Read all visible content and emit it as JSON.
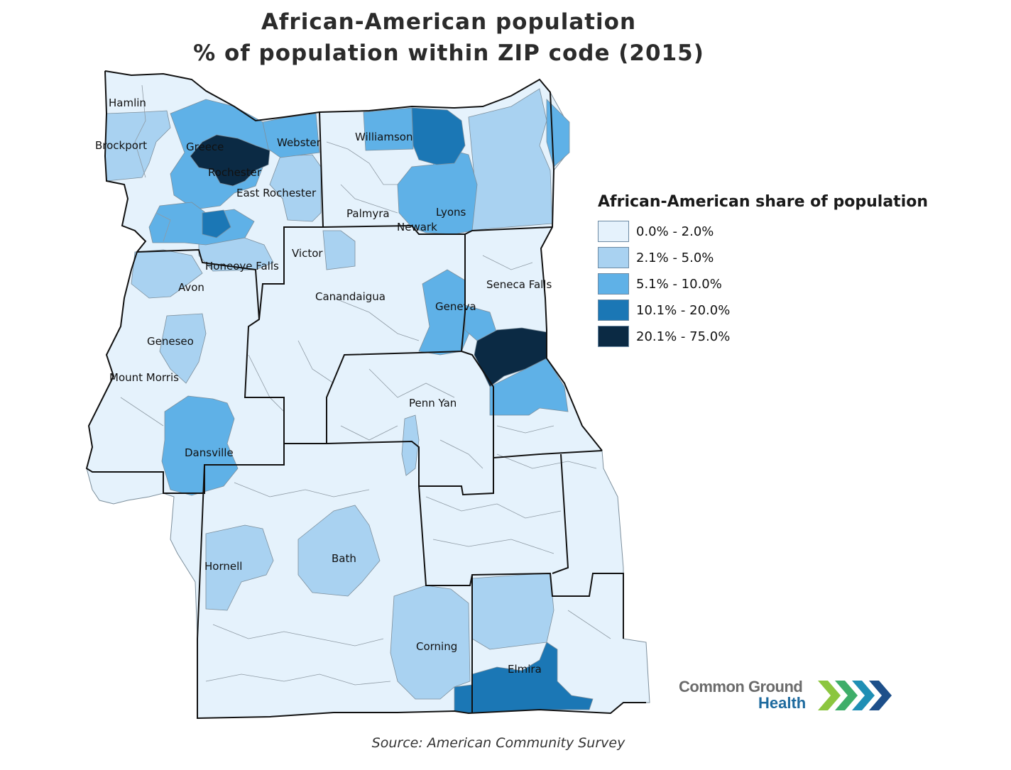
{
  "title": {
    "line1": "African-American population",
    "line2": "% of population within ZIP code (2015)"
  },
  "legend": {
    "title": "African-American share of population",
    "items": [
      {
        "label": "0.0% - 2.0%",
        "color": "#e5f2fc"
      },
      {
        "label": "2.1% - 5.0%",
        "color": "#a9d2f1"
      },
      {
        "label": "5.1% - 10.0%",
        "color": "#5fb1e7"
      },
      {
        "label": "10.1% - 20.0%",
        "color": "#1b77b5"
      },
      {
        "label": "20.1% - 75.0%",
        "color": "#0b2a44"
      }
    ]
  },
  "places": [
    {
      "name": "Hamlin",
      "class": 0
    },
    {
      "name": "Brockport",
      "class": 1
    },
    {
      "name": "Greece",
      "class": 2
    },
    {
      "name": "Webster",
      "class": 2
    },
    {
      "name": "Williamson",
      "class": 2
    },
    {
      "name": "Rochester",
      "class": 4
    },
    {
      "name": "East Rochester",
      "class": 1
    },
    {
      "name": "Palmyra",
      "class": 0
    },
    {
      "name": "Lyons",
      "class": 2
    },
    {
      "name": "Newark",
      "class": 2
    },
    {
      "name": "Victor",
      "class": 0
    },
    {
      "name": "Honeoye Falls",
      "class": 1
    },
    {
      "name": "Avon",
      "class": 1
    },
    {
      "name": "Canandaigua",
      "class": 0
    },
    {
      "name": "Seneca Falls",
      "class": 0
    },
    {
      "name": "Geneva",
      "class": 2
    },
    {
      "name": "Geneseo",
      "class": 1
    },
    {
      "name": "Mount Morris",
      "class": 0
    },
    {
      "name": "Penn Yan",
      "class": 0
    },
    {
      "name": "Dansville",
      "class": 2
    },
    {
      "name": "Hornell",
      "class": 1
    },
    {
      "name": "Bath",
      "class": 1
    },
    {
      "name": "Corning",
      "class": 1
    },
    {
      "name": "Elmira",
      "class": 3
    }
  ],
  "source": "Source: American Community Survey",
  "logo": {
    "line1": "Common Ground",
    "line2": "Health",
    "chevron_colors": [
      "#8cc63f",
      "#3fae6a",
      "#1f8fb5",
      "#1d4f8a"
    ]
  }
}
